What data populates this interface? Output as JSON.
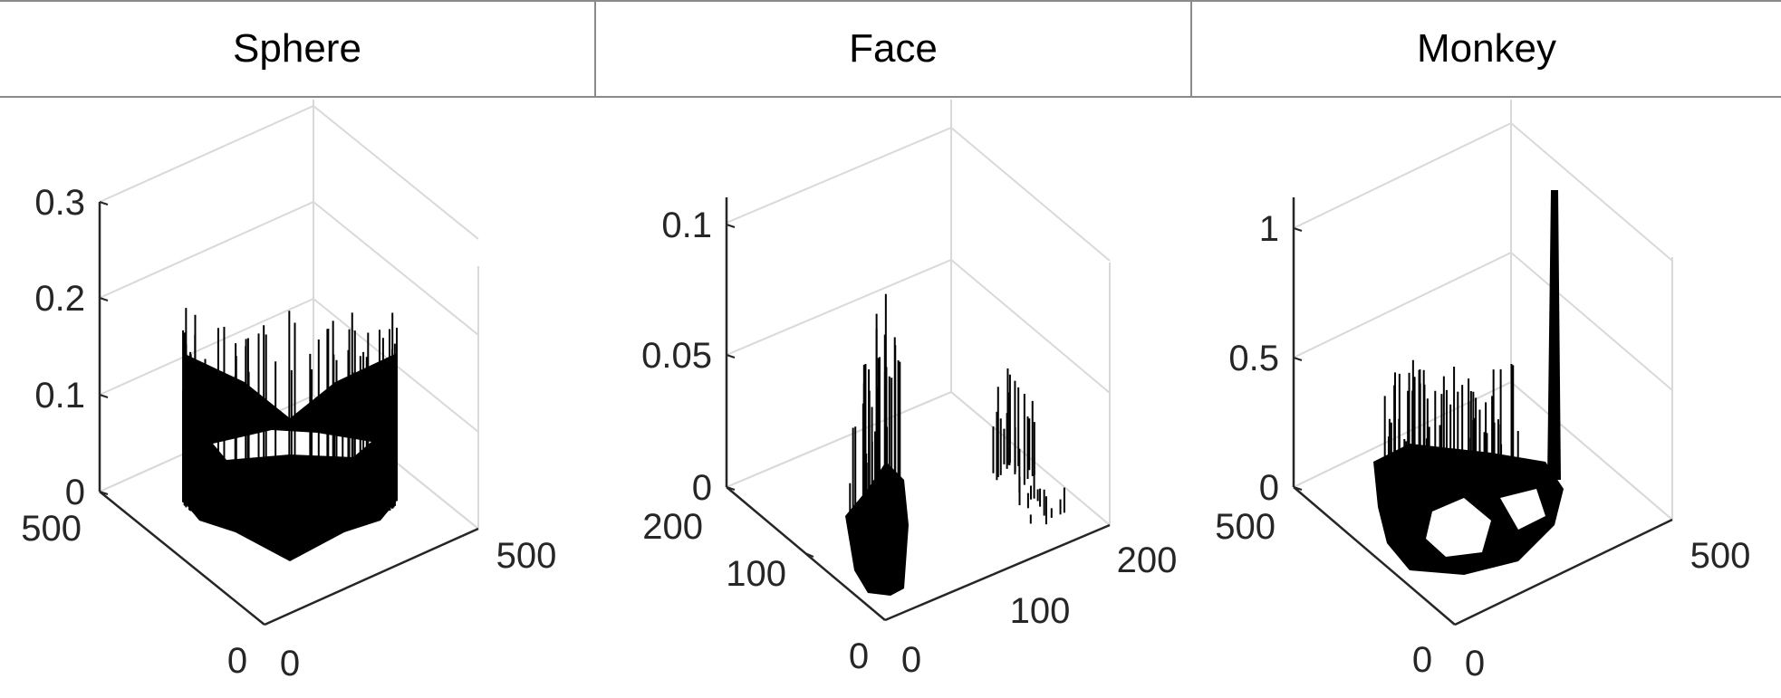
{
  "chart_data": [
    {
      "type": "surface3d",
      "title": "Sphere",
      "zticks": [
        "0.3",
        "0.2",
        "0.1",
        "0"
      ],
      "yticks": [
        "500",
        "0"
      ],
      "xticks": [
        "0",
        "500"
      ]
    },
    {
      "type": "surface3d",
      "title": "Face",
      "zticks": [
        "0.1",
        "0.05",
        "0"
      ],
      "yticks": [
        "200",
        "100",
        "0"
      ],
      "xticks": [
        "0",
        "100",
        "200"
      ]
    },
    {
      "type": "surface3d",
      "title": "Monkey",
      "zticks": [
        "1",
        "0.5",
        "0"
      ],
      "yticks": [
        "500",
        "0"
      ],
      "xticks": [
        "0",
        "500"
      ]
    }
  ],
  "colors": {
    "surface": "#000000",
    "axis": "#262626",
    "grid": "#d9d9d9",
    "border": "#8a8a8a"
  }
}
